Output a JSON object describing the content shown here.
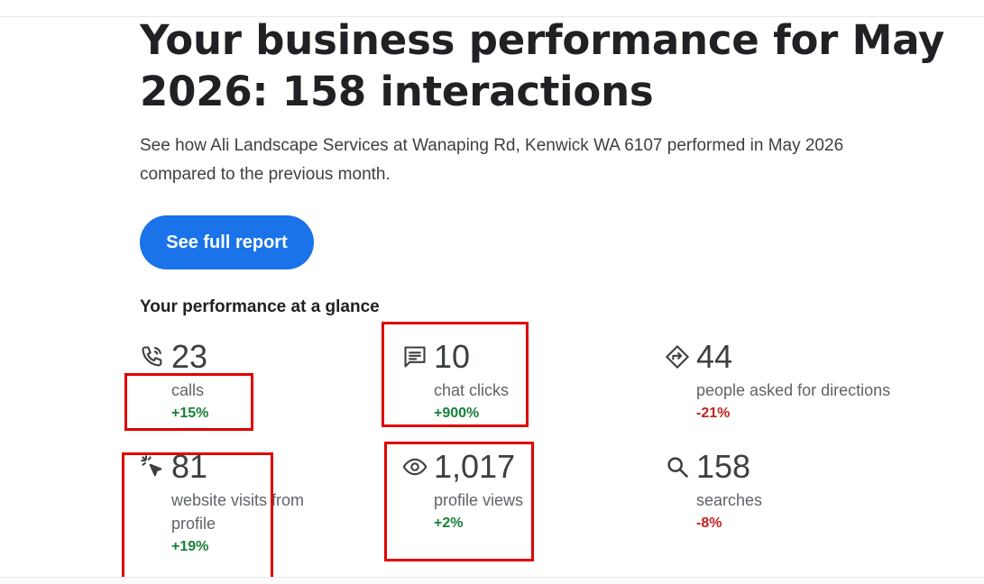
{
  "header": {
    "title": "Your business performance for May 2026: 158 interactions",
    "subtitle": "See how Ali Landscape Services at Wanaping Rd, Kenwick WA 6107 performed in May 2026 compared to the previous month."
  },
  "cta": {
    "label": "See full report",
    "color": "#1a73e8"
  },
  "glance": {
    "title": "Your performance at a glance",
    "stats": [
      {
        "icon": "phone-icon",
        "value": "23",
        "label": "calls",
        "change": "+15%",
        "trend": "up"
      },
      {
        "icon": "chat-icon",
        "value": "10",
        "label": "chat clicks",
        "change": "+900%",
        "trend": "up"
      },
      {
        "icon": "directions-icon",
        "value": "44",
        "label": "people asked for directions",
        "change": "-21%",
        "trend": "down"
      },
      {
        "icon": "cursor-click-icon",
        "value": "81",
        "label": "website visits from profile",
        "change": "+19%",
        "trend": "up"
      },
      {
        "icon": "eye-icon",
        "value": "1,017",
        "label": "profile views",
        "change": "+2%",
        "trend": "up"
      },
      {
        "icon": "search-icon",
        "value": "158",
        "label": "searches",
        "change": "-8%",
        "trend": "down"
      }
    ]
  },
  "colors": {
    "positive": "#188038",
    "negative": "#c5221f",
    "annotation": "#e00000"
  }
}
